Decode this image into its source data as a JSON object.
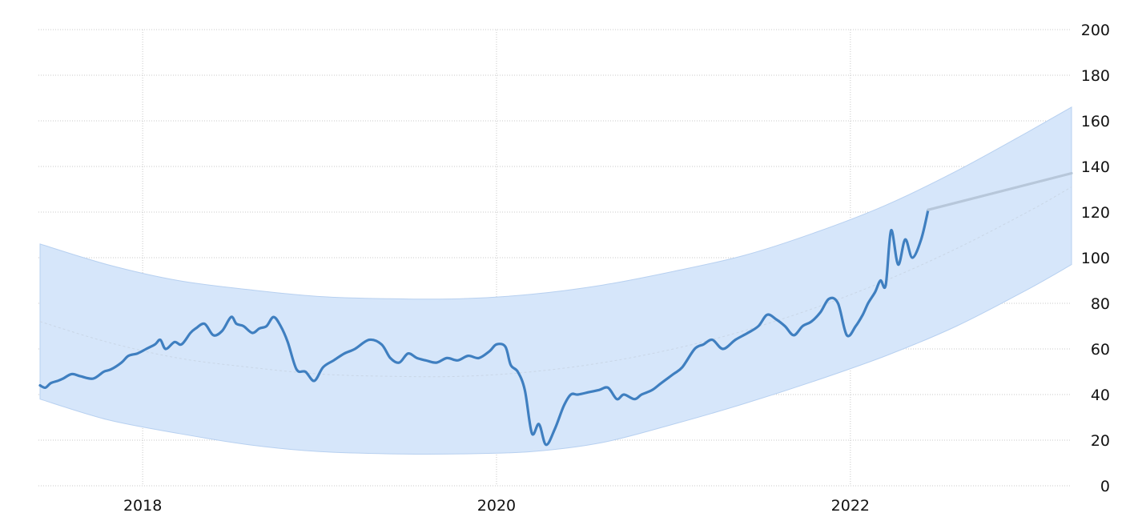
{
  "chart_data": {
    "type": "line",
    "title": "",
    "xlabel": "",
    "ylabel": "",
    "x_ticks": [
      "2018",
      "2020",
      "2022"
    ],
    "y_ticks": [
      0,
      20,
      40,
      60,
      80,
      100,
      120,
      140,
      160,
      180,
      200
    ],
    "ylim": [
      0,
      200
    ],
    "xlim": [
      2017.42,
      2023.25
    ],
    "grid": true,
    "legend": "none",
    "colors": {
      "actual": "#3f7fc0",
      "forecast": "#b7c7da",
      "band": "#d6e6fa",
      "band_edge": "#b7d0f0",
      "trend": "#c9d6e6"
    },
    "series": [
      {
        "role": "actual",
        "x": [
          2017.42,
          2017.45,
          2017.48,
          2017.52,
          2017.55,
          2017.6,
          2017.65,
          2017.72,
          2017.78,
          2017.82,
          2017.88,
          2017.92,
          2017.97,
          2018.02,
          2018.07,
          2018.1,
          2018.13,
          2018.18,
          2018.22,
          2018.27,
          2018.3,
          2018.35,
          2018.4,
          2018.45,
          2018.5,
          2018.53,
          2018.57,
          2018.62,
          2018.66,
          2018.7,
          2018.74,
          2018.78,
          2018.82,
          2018.87,
          2018.92,
          2018.97,
          2019.02,
          2019.08,
          2019.14,
          2019.2,
          2019.28,
          2019.35,
          2019.4,
          2019.45,
          2019.5,
          2019.55,
          2019.6,
          2019.66,
          2019.72,
          2019.78,
          2019.84,
          2019.9,
          2019.96,
          2020.0,
          2020.05,
          2020.08,
          2020.12,
          2020.16,
          2020.2,
          2020.24,
          2020.28,
          2020.33,
          2020.38,
          2020.42,
          2020.46,
          2020.52,
          2020.58,
          2020.63,
          2020.68,
          2020.72,
          2020.78,
          2020.82,
          2020.88,
          2020.93,
          2021.0,
          2021.05,
          2021.12,
          2021.17,
          2021.22,
          2021.28,
          2021.35,
          2021.42,
          2021.48,
          2021.53,
          2021.58,
          2021.63,
          2021.68,
          2021.73,
          2021.78,
          2021.83,
          2021.88,
          2021.93,
          2021.98,
          2022.03,
          2022.07,
          2022.1,
          2022.14,
          2022.17,
          2022.2,
          2022.23,
          2022.27,
          2022.31,
          2022.35,
          2022.4,
          2022.44
        ],
        "y": [
          44,
          43,
          45,
          46,
          47,
          49,
          48,
          47,
          50,
          51,
          54,
          57,
          58,
          60,
          62,
          64,
          60,
          63,
          62,
          67,
          69,
          71,
          66,
          68,
          74,
          71,
          70,
          67,
          69,
          70,
          74,
          70,
          63,
          51,
          50,
          46,
          52,
          55,
          58,
          60,
          64,
          62,
          56,
          54,
          58,
          56,
          55,
          54,
          56,
          55,
          57,
          56,
          59,
          62,
          61,
          53,
          50,
          42,
          23,
          27,
          18,
          25,
          35,
          40,
          40,
          41,
          42,
          43,
          38,
          40,
          38,
          40,
          42,
          45,
          49,
          52,
          60,
          62,
          64,
          60,
          64,
          67,
          70,
          75,
          73,
          70,
          66,
          70,
          72,
          76,
          82,
          80,
          66,
          70,
          75,
          80,
          85,
          90,
          88,
          112,
          97,
          108,
          100,
          108,
          121
        ]
      },
      {
        "role": "forecast",
        "x": [
          2022.44,
          2023.25
        ],
        "y": [
          121,
          137
        ]
      }
    ],
    "band": {
      "x": [
        2017.42,
        2017.8,
        2018.2,
        2018.6,
        2019.0,
        2019.4,
        2019.8,
        2020.2,
        2020.6,
        2021.0,
        2021.4,
        2021.8,
        2022.2,
        2022.6,
        2023.0,
        2023.25
      ],
      "upper": [
        106,
        97,
        90,
        86,
        83,
        82,
        82,
        84,
        88,
        94,
        101,
        111,
        123,
        138,
        155,
        166
      ],
      "lower": [
        38,
        29,
        23,
        18,
        15,
        14,
        14,
        15,
        19,
        27,
        36,
        46,
        57,
        70,
        86,
        97
      ],
      "mid": [
        72,
        63,
        56,
        52,
        49,
        48,
        48,
        50,
        54,
        60,
        68,
        78,
        90,
        104,
        120,
        131
      ]
    }
  }
}
